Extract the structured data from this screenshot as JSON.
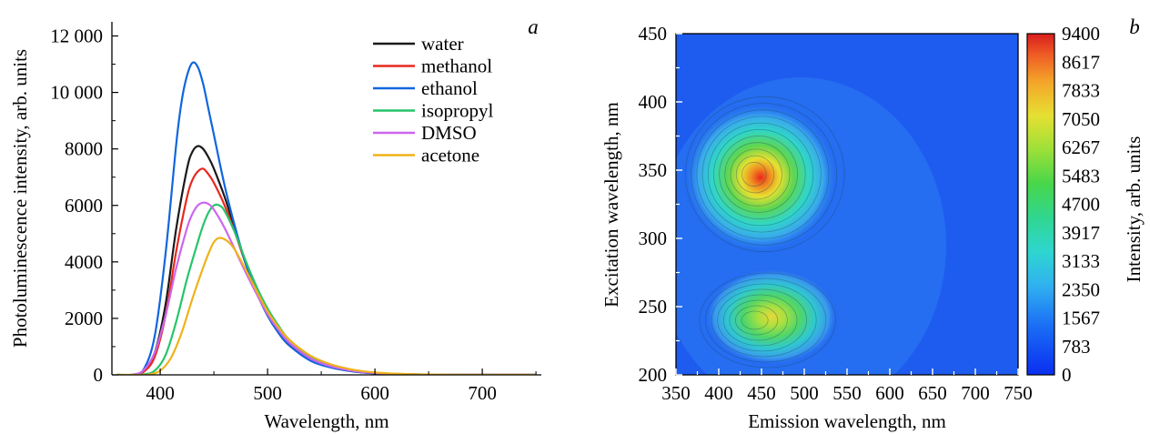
{
  "chart_data": [
    {
      "type": "line",
      "panel_label": "a",
      "xlabel": "Wavelength, nm",
      "ylabel": "Photoluminescence intensity, arb. units",
      "xlim": [
        355,
        755
      ],
      "ylim": [
        0,
        12500
      ],
      "xticks": [
        400,
        500,
        600,
        700
      ],
      "xtick_labels": [
        "400",
        "500",
        "600",
        "700"
      ],
      "yticks": [
        0,
        2000,
        4000,
        6000,
        8000,
        10000,
        12000
      ],
      "ytick_labels": [
        "0",
        "2000",
        "4000",
        "6000",
        "8000",
        "10 000",
        "12 000"
      ],
      "legend_position": "top-right",
      "series": [
        {
          "name": "water",
          "color": "#1a1a1a",
          "x": [
            360,
            375,
            385,
            395,
            405,
            415,
            425,
            430,
            435,
            440,
            445,
            450,
            460,
            470,
            480,
            490,
            500,
            510,
            520,
            540,
            560,
            580,
            600,
            620,
            650,
            700,
            750
          ],
          "y": [
            0,
            5,
            150,
            800,
            2500,
            5200,
            7300,
            7900,
            8100,
            8000,
            7700,
            7300,
            6300,
            5100,
            3900,
            2900,
            2100,
            1500,
            1050,
            520,
            260,
            120,
            55,
            25,
            8,
            0,
            0
          ]
        },
        {
          "name": "methanol",
          "color": "#e8281e",
          "x": [
            360,
            375,
            385,
            395,
            405,
            415,
            425,
            430,
            435,
            440,
            445,
            450,
            460,
            470,
            480,
            490,
            500,
            510,
            520,
            540,
            560,
            580,
            600,
            620,
            650,
            700,
            750
          ],
          "y": [
            0,
            5,
            120,
            650,
            2100,
            4400,
            6300,
            6900,
            7200,
            7300,
            7100,
            6800,
            6000,
            5000,
            3900,
            2950,
            2150,
            1550,
            1100,
            550,
            270,
            130,
            60,
            28,
            9,
            0,
            0
          ]
        },
        {
          "name": "ethanol",
          "color": "#1166dd",
          "x": [
            360,
            375,
            385,
            395,
            405,
            415,
            420,
            425,
            430,
            435,
            440,
            445,
            450,
            460,
            470,
            480,
            490,
            500,
            510,
            520,
            540,
            560,
            580,
            600,
            620,
            650,
            700,
            750
          ],
          "y": [
            0,
            10,
            220,
            1400,
            4300,
            8200,
            9700,
            10600,
            11050,
            10900,
            10300,
            9400,
            8500,
            6700,
            5200,
            3900,
            2900,
            2100,
            1500,
            1050,
            500,
            250,
            120,
            55,
            25,
            8,
            0,
            0
          ]
        },
        {
          "name": "isopropyl",
          "color": "#27c46a",
          "x": [
            360,
            375,
            385,
            395,
            405,
            415,
            425,
            435,
            440,
            445,
            450,
            455,
            460,
            470,
            480,
            490,
            500,
            510,
            520,
            540,
            560,
            580,
            600,
            620,
            650,
            700,
            750
          ],
          "y": [
            0,
            0,
            20,
            150,
            700,
            1900,
            3400,
            4700,
            5300,
            5750,
            6000,
            6000,
            5800,
            5000,
            4000,
            3100,
            2350,
            1750,
            1250,
            650,
            330,
            160,
            75,
            35,
            12,
            0,
            0
          ]
        },
        {
          "name": "DMSO",
          "color": "#cc66ee",
          "x": [
            360,
            375,
            385,
            395,
            405,
            415,
            425,
            430,
            435,
            440,
            445,
            450,
            460,
            470,
            480,
            490,
            500,
            510,
            520,
            540,
            560,
            580,
            600,
            620,
            650,
            700,
            750
          ],
          "y": [
            0,
            10,
            180,
            800,
            2100,
            3800,
            5200,
            5700,
            6000,
            6100,
            6050,
            5850,
            5200,
            4400,
            3600,
            2850,
            2150,
            1600,
            1150,
            580,
            290,
            140,
            65,
            30,
            10,
            0,
            0
          ]
        },
        {
          "name": "acetone",
          "color": "#f0b21a",
          "x": [
            360,
            380,
            390,
            400,
            410,
            420,
            430,
            440,
            445,
            450,
            455,
            460,
            465,
            470,
            480,
            490,
            500,
            510,
            520,
            540,
            560,
            580,
            600,
            620,
            650,
            700,
            750
          ],
          "y": [
            0,
            0,
            15,
            150,
            600,
            1500,
            2700,
            3800,
            4300,
            4700,
            4850,
            4800,
            4650,
            4400,
            3700,
            2950,
            2250,
            1700,
            1250,
            680,
            360,
            180,
            85,
            40,
            12,
            0,
            0
          ]
        }
      ]
    },
    {
      "type": "heatmap",
      "panel_label": "b",
      "xlabel": "Emission wavelength, nm",
      "ylabel": "Excitation wavelength, nm",
      "colorbar_label": "Intensity, arb. units",
      "xlim": [
        350,
        750
      ],
      "ylim": [
        200,
        450
      ],
      "xticks": [
        350,
        400,
        450,
        500,
        550,
        600,
        650,
        700,
        750
      ],
      "xtick_labels": [
        "350",
        "400",
        "450",
        "500",
        "550",
        "600",
        "650",
        "700",
        "750"
      ],
      "yticks": [
        200,
        250,
        300,
        350,
        400,
        450
      ],
      "ytick_labels": [
        "200",
        "250",
        "300",
        "350",
        "400",
        "450"
      ],
      "colorbar_range": [
        0,
        9400
      ],
      "colorbar_ticks": [
        "9400",
        "8617",
        "7833",
        "7050",
        "6267",
        "5483",
        "4700",
        "3917",
        "3133",
        "2350",
        "1567",
        "783",
        "0"
      ],
      "peaks": [
        {
          "emission_nm": 440,
          "excitation_nm": 347,
          "intensity": 9000
        },
        {
          "emission_nm": 440,
          "excitation_nm": 240,
          "intensity": 6500
        }
      ]
    }
  ]
}
